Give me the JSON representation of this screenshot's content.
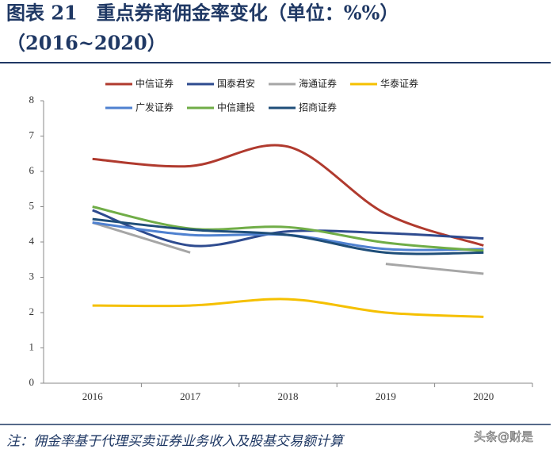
{
  "chart_data": {
    "type": "line",
    "title": "图表 21　重点券商佣金率变化（单位：%%）",
    "subtitle": "（2016~2020）",
    "categories": [
      "2016",
      "2017",
      "2018",
      "2019",
      "2020"
    ],
    "series": [
      {
        "name": "中信证券",
        "color": "#b03a2e",
        "values": [
          6.35,
          6.15,
          6.7,
          4.8,
          3.9
        ]
      },
      {
        "name": "国泰君安",
        "color": "#2e4b8f",
        "values": [
          4.9,
          3.9,
          4.3,
          4.25,
          4.1
        ]
      },
      {
        "name": "海通证券",
        "color": "#a6a6a6",
        "values": [
          4.55,
          3.7,
          null,
          3.38,
          3.1
        ]
      },
      {
        "name": "华泰证券",
        "color": "#f5c000",
        "values": [
          2.2,
          2.2,
          2.38,
          2.0,
          1.88
        ]
      },
      {
        "name": "广发证券",
        "color": "#4f81d0",
        "values": [
          4.55,
          4.2,
          4.2,
          3.8,
          3.8
        ]
      },
      {
        "name": "中信建投",
        "color": "#70ad47",
        "values": [
          5.0,
          4.38,
          4.42,
          3.98,
          3.75
        ]
      },
      {
        "name": "招商证券",
        "color": "#1f4e79",
        "values": [
          4.65,
          4.35,
          4.2,
          3.7,
          3.7
        ]
      }
    ],
    "ylim": [
      0,
      8
    ],
    "yticks": [
      0,
      1,
      2,
      3,
      4,
      5,
      6,
      7,
      8
    ],
    "legend": "top",
    "note": "注：佣金率基于代理买卖证券业务收入及股基交易额计算",
    "watermark": "头条@财是"
  }
}
